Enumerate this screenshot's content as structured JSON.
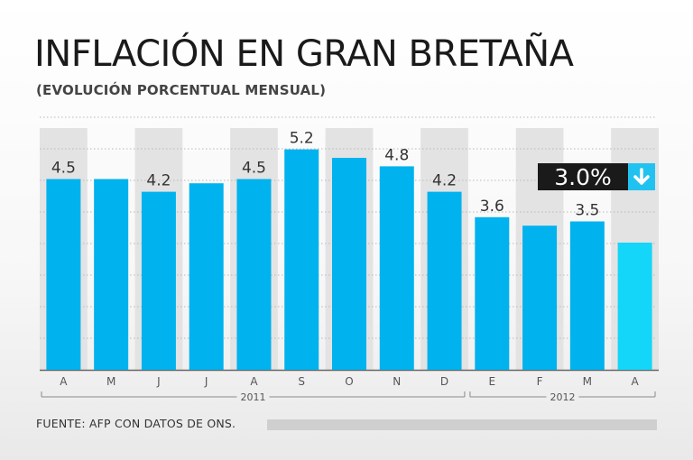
{
  "chart_data": {
    "type": "bar",
    "title": "INFLACIÓN EN GRAN BRETAÑA",
    "subtitle": "(EVOLUCIÓN PORCENTUAL MENSUAL)",
    "categories": [
      "A",
      "M",
      "J",
      "J",
      "A",
      "S",
      "O",
      "N",
      "D",
      "E",
      "F",
      "M",
      "A"
    ],
    "values": [
      4.5,
      4.5,
      4.2,
      4.4,
      4.5,
      5.2,
      5.0,
      4.8,
      4.2,
      3.6,
      3.4,
      3.5,
      3.0
    ],
    "labels": [
      "4.5",
      "",
      "4.2",
      "",
      "4.5",
      "5.2",
      "",
      "4.8",
      "4.2",
      "3.6",
      "",
      "3.5",
      ""
    ],
    "highlight": {
      "index": 12,
      "label": "3.0%",
      "direction": "down"
    },
    "year_groups": [
      {
        "label": "2011",
        "from": 0,
        "to": 8
      },
      {
        "label": "2012",
        "from": 9,
        "to": 12
      }
    ],
    "ylim": [
      0,
      6
    ],
    "xlabel": "",
    "ylabel": "",
    "grid": true,
    "colors": {
      "bar": "#00b2ee",
      "highlight_bar": "#14d6f8",
      "badge_bg": "#1a1a1a",
      "badge_arrow_bg": "#22c2f0",
      "grid": "#b8b8b8",
      "band": "#e3e3e3"
    }
  },
  "source": "FUENTE: AFP CON DATOS DE ONS."
}
